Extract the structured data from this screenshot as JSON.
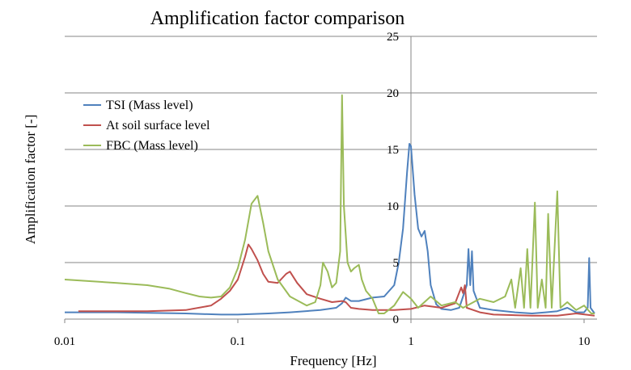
{
  "chart_data": {
    "type": "line",
    "title": "Amplification factor comparison",
    "xlabel": "Frequency [Hz]",
    "ylabel": "Amplification factor  [-]",
    "xscale": "log",
    "xlim": [
      0.01,
      11.5
    ],
    "ylim": [
      0,
      25
    ],
    "x_ticks": [
      0.01,
      0.1,
      1,
      10
    ],
    "x_tick_labels": [
      "0.01",
      "0.1",
      "1",
      "10"
    ],
    "y_ticks": [
      0,
      5,
      10,
      15,
      20,
      25
    ],
    "y_tick_labels": [
      "0",
      "5",
      "10",
      "15",
      "20",
      "25"
    ],
    "grid": "horizontal",
    "legend_position": "upper-left",
    "series": [
      {
        "name": "TSI (Mass level)",
        "color": "#4F81BD",
        "points": [
          [
            0.01,
            0.6
          ],
          [
            0.02,
            0.6
          ],
          [
            0.05,
            0.5
          ],
          [
            0.08,
            0.4
          ],
          [
            0.1,
            0.4
          ],
          [
            0.15,
            0.5
          ],
          [
            0.2,
            0.6
          ],
          [
            0.3,
            0.8
          ],
          [
            0.37,
            1.0
          ],
          [
            0.4,
            1.4
          ],
          [
            0.42,
            1.9
          ],
          [
            0.45,
            1.6
          ],
          [
            0.5,
            1.6
          ],
          [
            0.6,
            1.9
          ],
          [
            0.7,
            2.0
          ],
          [
            0.8,
            3.0
          ],
          [
            0.85,
            5.0
          ],
          [
            0.9,
            8.0
          ],
          [
            0.95,
            13.0
          ],
          [
            0.98,
            15.5
          ],
          [
            1.0,
            15.3
          ],
          [
            1.05,
            11.0
          ],
          [
            1.1,
            8.0
          ],
          [
            1.15,
            7.3
          ],
          [
            1.2,
            7.8
          ],
          [
            1.25,
            6.0
          ],
          [
            1.3,
            3.0
          ],
          [
            1.4,
            1.3
          ],
          [
            1.5,
            0.9
          ],
          [
            1.7,
            0.8
          ],
          [
            1.9,
            1.0
          ],
          [
            2.0,
            2.0
          ],
          [
            2.1,
            3.0
          ],
          [
            2.15,
            6.2
          ],
          [
            2.2,
            3.0
          ],
          [
            2.25,
            6.0
          ],
          [
            2.3,
            2.5
          ],
          [
            2.5,
            1.0
          ],
          [
            3.0,
            0.8
          ],
          [
            4.0,
            0.6
          ],
          [
            5.0,
            0.5
          ],
          [
            6.0,
            0.6
          ],
          [
            7.0,
            0.7
          ],
          [
            8.0,
            1.0
          ],
          [
            9.0,
            0.6
          ],
          [
            10.0,
            0.6
          ],
          [
            10.5,
            1.0
          ],
          [
            10.7,
            5.4
          ],
          [
            10.9,
            1.0
          ],
          [
            11.5,
            0.5
          ]
        ]
      },
      {
        "name": "At soil surface level",
        "color": "#C0504D",
        "points": [
          [
            0.012,
            0.7
          ],
          [
            0.02,
            0.7
          ],
          [
            0.03,
            0.7
          ],
          [
            0.05,
            0.8
          ],
          [
            0.07,
            1.2
          ],
          [
            0.08,
            1.8
          ],
          [
            0.09,
            2.5
          ],
          [
            0.1,
            3.5
          ],
          [
            0.11,
            5.5
          ],
          [
            0.115,
            6.6
          ],
          [
            0.12,
            6.2
          ],
          [
            0.13,
            5.2
          ],
          [
            0.14,
            4.0
          ],
          [
            0.15,
            3.3
          ],
          [
            0.17,
            3.2
          ],
          [
            0.19,
            4.0
          ],
          [
            0.2,
            4.2
          ],
          [
            0.22,
            3.2
          ],
          [
            0.25,
            2.2
          ],
          [
            0.3,
            1.8
          ],
          [
            0.35,
            1.5
          ],
          [
            0.4,
            1.6
          ],
          [
            0.42,
            1.5
          ],
          [
            0.45,
            1.0
          ],
          [
            0.5,
            0.9
          ],
          [
            0.6,
            0.8
          ],
          [
            0.8,
            0.8
          ],
          [
            1.0,
            0.9
          ],
          [
            1.2,
            1.2
          ],
          [
            1.5,
            1.0
          ],
          [
            1.8,
            1.4
          ],
          [
            1.95,
            2.8
          ],
          [
            2.0,
            2.3
          ],
          [
            2.05,
            3.0
          ],
          [
            2.1,
            1.0
          ],
          [
            2.5,
            0.6
          ],
          [
            3.0,
            0.4
          ],
          [
            5.0,
            0.3
          ],
          [
            7.0,
            0.3
          ],
          [
            9.0,
            0.5
          ],
          [
            11.5,
            0.3
          ]
        ]
      },
      {
        "name": "FBC (Mass level)",
        "color": "#9BBB59",
        "points": [
          [
            0.01,
            3.5
          ],
          [
            0.02,
            3.2
          ],
          [
            0.03,
            3.0
          ],
          [
            0.04,
            2.7
          ],
          [
            0.05,
            2.3
          ],
          [
            0.06,
            2.0
          ],
          [
            0.07,
            1.9
          ],
          [
            0.08,
            2.0
          ],
          [
            0.09,
            2.8
          ],
          [
            0.1,
            4.5
          ],
          [
            0.11,
            7.0
          ],
          [
            0.12,
            10.2
          ],
          [
            0.13,
            10.9
          ],
          [
            0.14,
            8.5
          ],
          [
            0.15,
            6.0
          ],
          [
            0.17,
            3.5
          ],
          [
            0.2,
            2.0
          ],
          [
            0.25,
            1.2
          ],
          [
            0.28,
            1.5
          ],
          [
            0.3,
            3.0
          ],
          [
            0.31,
            5.0
          ],
          [
            0.33,
            4.2
          ],
          [
            0.35,
            2.8
          ],
          [
            0.37,
            3.2
          ],
          [
            0.39,
            6.0
          ],
          [
            0.4,
            19.8
          ],
          [
            0.41,
            10.0
          ],
          [
            0.43,
            5.0
          ],
          [
            0.45,
            4.2
          ],
          [
            0.47,
            4.5
          ],
          [
            0.5,
            4.8
          ],
          [
            0.52,
            3.5
          ],
          [
            0.55,
            2.5
          ],
          [
            0.6,
            1.8
          ],
          [
            0.65,
            0.5
          ],
          [
            0.7,
            0.5
          ],
          [
            0.8,
            1.2
          ],
          [
            0.9,
            2.4
          ],
          [
            1.0,
            1.8
          ],
          [
            1.1,
            1.0
          ],
          [
            1.3,
            2.0
          ],
          [
            1.5,
            1.2
          ],
          [
            1.8,
            1.5
          ],
          [
            2.0,
            1.0
          ],
          [
            2.5,
            1.8
          ],
          [
            3.0,
            1.5
          ],
          [
            3.5,
            2.0
          ],
          [
            3.8,
            3.5
          ],
          [
            4.0,
            1.0
          ],
          [
            4.3,
            4.5
          ],
          [
            4.5,
            1.0
          ],
          [
            4.7,
            6.2
          ],
          [
            4.9,
            1.0
          ],
          [
            5.2,
            10.3
          ],
          [
            5.4,
            1.0
          ],
          [
            5.7,
            3.5
          ],
          [
            6.0,
            1.0
          ],
          [
            6.2,
            9.3
          ],
          [
            6.5,
            1.0
          ],
          [
            7.0,
            11.3
          ],
          [
            7.3,
            1.0
          ],
          [
            8.0,
            1.5
          ],
          [
            9.0,
            0.8
          ],
          [
            10.0,
            1.2
          ],
          [
            11.0,
            0.5
          ],
          [
            11.5,
            0.5
          ]
        ]
      }
    ]
  }
}
